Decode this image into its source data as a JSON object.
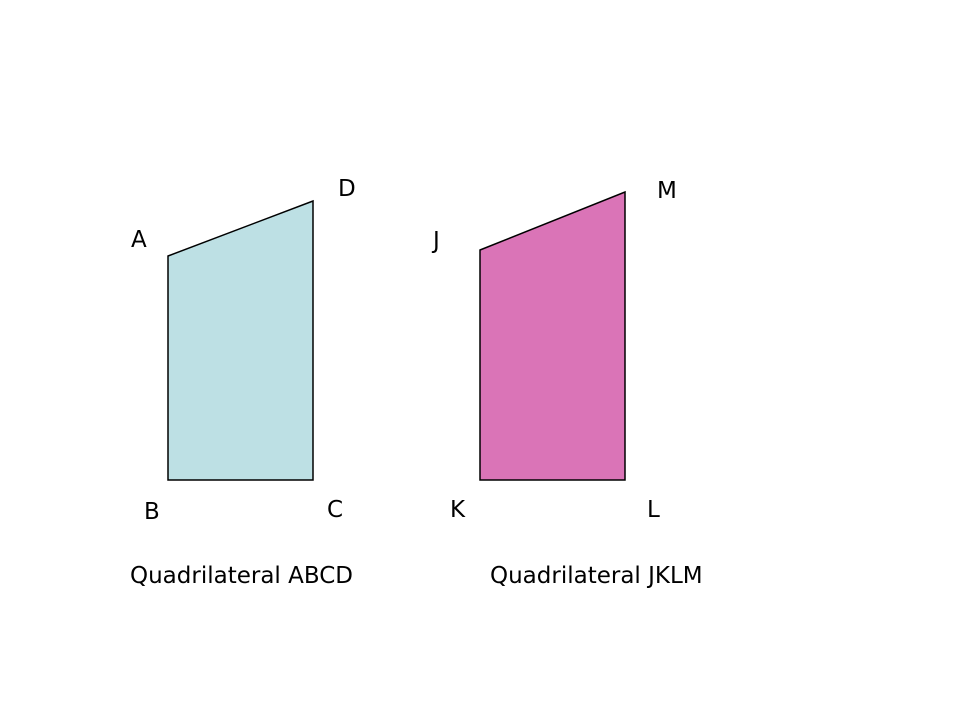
{
  "figures": [
    {
      "id": "abcd",
      "fill": "#bde0e4",
      "caption": "Quadrilateral ABCD",
      "labels": {
        "top_left": "A",
        "top_right": "D",
        "bottom_left": "B",
        "bottom_right": "C"
      }
    },
    {
      "id": "jklm",
      "fill": "#da74b7",
      "caption": "Quadrilateral JKLM",
      "labels": {
        "top_left": "J",
        "top_right": "M",
        "bottom_left": "K",
        "bottom_right": "L"
      }
    }
  ]
}
